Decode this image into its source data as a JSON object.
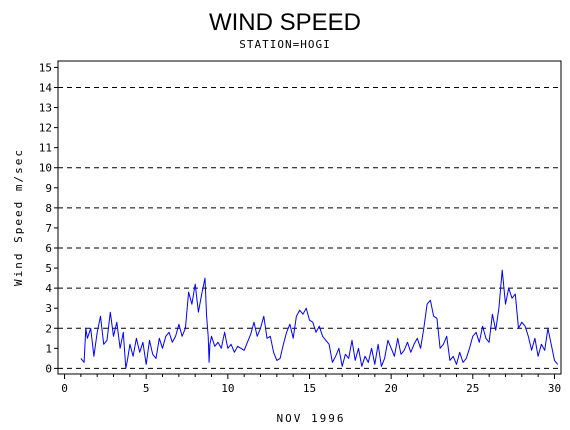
{
  "chart_data": {
    "type": "line",
    "title": "WIND SPEED",
    "subtitle": "STATION=HOGI",
    "xlabel": "NOV 1996",
    "ylabel": "Wind Speed m/sec",
    "xlim": [
      0,
      30
    ],
    "ylim": [
      0,
      15
    ],
    "x_ticks": [
      "0",
      "5",
      "10",
      "15",
      "20",
      "25",
      "30"
    ],
    "y_ticks": [
      "0",
      "1",
      "2",
      "3",
      "4",
      "5",
      "6",
      "7",
      "8",
      "9",
      "10",
      "11",
      "12",
      "13",
      "14",
      "15"
    ],
    "y_tick_positions": [
      0,
      1,
      2,
      3,
      4,
      5,
      6,
      7,
      8,
      9,
      10,
      11,
      12,
      13,
      14,
      15
    ],
    "grid_y_dashed": [
      2,
      4,
      6,
      8,
      10,
      14
    ],
    "series": [
      {
        "color": "#0000ff",
        "x": [
          1.0,
          1.2,
          1.3,
          1.4,
          1.6,
          1.8,
          2.0,
          2.2,
          2.4,
          2.6,
          2.8,
          3.0,
          3.2,
          3.4,
          3.6,
          3.75,
          3.85,
          4.0,
          4.2,
          4.4,
          4.6,
          4.8,
          5.0,
          5.2,
          5.4,
          5.6,
          5.8,
          6.0,
          6.2,
          6.4,
          6.6,
          6.8,
          7.0,
          7.2,
          7.4,
          7.6,
          7.8,
          8.0,
          8.2,
          8.4,
          8.6,
          8.7,
          8.8,
          8.85,
          8.9,
          9.0,
          9.2,
          9.4,
          9.6,
          9.8,
          10.0,
          10.2,
          10.4,
          10.6,
          10.8,
          11.0,
          11.2,
          11.4,
          11.6,
          11.8,
          12.0,
          12.2,
          12.4,
          12.6,
          12.8,
          13.0,
          13.2,
          13.4,
          13.6,
          13.8,
          14.0,
          14.2,
          14.4,
          14.6,
          14.8,
          15.0,
          15.2,
          15.4,
          15.6,
          15.8,
          16.0,
          16.2,
          16.4,
          16.6,
          16.8,
          17.0,
          17.2,
          17.4,
          17.6,
          17.8,
          18.0,
          18.2,
          18.4,
          18.6,
          18.8,
          19.0,
          19.2,
          19.4,
          19.6,
          19.8,
          20.0,
          20.2,
          20.4,
          20.6,
          20.8,
          21.0,
          21.2,
          21.4,
          21.6,
          21.8,
          22.0,
          22.2,
          22.4,
          22.6,
          22.8,
          23.0,
          23.2,
          23.4,
          23.6,
          23.8,
          24.0,
          24.2,
          24.4,
          24.6,
          24.8,
          25.0,
          25.2,
          25.4,
          25.6,
          25.8,
          26.0,
          26.2,
          26.4,
          26.6,
          26.8,
          27.0,
          27.2,
          27.4,
          27.6,
          27.8,
          28.0,
          28.2,
          28.4,
          28.6,
          28.8,
          29.0,
          29.2,
          29.4,
          29.6,
          29.8,
          30.0,
          30.2
        ],
        "values": [
          0.5,
          0.3,
          2.0,
          1.5,
          2.0,
          0.6,
          1.8,
          2.6,
          1.2,
          1.4,
          2.8,
          1.6,
          2.3,
          1.0,
          1.8,
          0.0,
          0.4,
          1.2,
          0.6,
          1.5,
          0.8,
          1.3,
          0.2,
          1.4,
          0.7,
          0.5,
          1.5,
          1.0,
          1.6,
          1.8,
          1.3,
          1.6,
          2.2,
          1.6,
          2.0,
          3.8,
          3.2,
          4.2,
          2.8,
          3.7,
          4.5,
          2.6,
          1.6,
          0.3,
          1.2,
          1.6,
          1.1,
          1.3,
          1.0,
          1.8,
          1.0,
          1.2,
          0.8,
          1.1,
          1.0,
          0.9,
          1.3,
          1.7,
          2.3,
          1.6,
          2.0,
          2.6,
          1.5,
          1.6,
          0.8,
          0.4,
          0.5,
          1.2,
          1.8,
          2.2,
          1.5,
          2.6,
          2.9,
          2.7,
          3.0,
          2.4,
          2.3,
          1.8,
          2.1,
          1.6,
          1.4,
          1.2,
          0.3,
          0.6,
          1.0,
          0.1,
          0.7,
          0.5,
          1.4,
          0.4,
          1.0,
          0.1,
          0.6,
          0.3,
          1.0,
          0.2,
          1.2,
          0.1,
          0.5,
          1.4,
          1.0,
          0.6,
          1.5,
          0.7,
          0.9,
          1.3,
          0.8,
          1.2,
          1.5,
          1.0,
          2.0,
          3.2,
          3.4,
          2.6,
          2.5,
          1.0,
          1.2,
          1.6,
          0.4,
          0.6,
          0.2,
          0.8,
          0.3,
          0.5,
          1.0,
          1.6,
          1.8,
          1.3,
          2.1,
          1.5,
          1.3,
          2.7,
          1.9,
          3.0,
          4.9,
          3.2,
          4.0,
          3.5,
          3.7,
          2.0,
          2.3,
          2.1,
          1.6,
          0.9,
          1.5,
          0.6,
          1.2,
          0.9,
          2.0,
          1.2,
          0.4,
          0.2
        ]
      }
    ]
  }
}
